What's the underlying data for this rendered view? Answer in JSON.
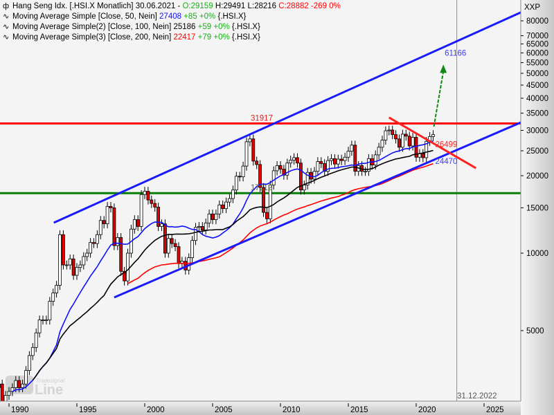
{
  "legend": {
    "main": {
      "name": "Hang Seng Idx. [.HSI.X  Monatlich] 30.06.2021 -",
      "open": "O:29159",
      "high": "H:29491",
      "low": "L:28216",
      "close": "C:28882 -269 0%"
    },
    "ma": [
      {
        "label": "Moving Average Simple [Close, 50, Nein]",
        "value": "27408",
        "change": "+85 +0%",
        "symbol": "{.HSI.X}",
        "color": "#1010ff",
        "period": 50
      },
      {
        "label": "Moving Average Simple(2) [Close, 100, Nein]",
        "value": "25186",
        "change": "+59 +0%",
        "symbol": "{.HSI.X}",
        "color": "#000000",
        "period": 100
      },
      {
        "label": "Moving Average Simple(3) [Close, 200, Nein]",
        "value": "22417",
        "change": "+79 +0%",
        "symbol": "{.HSI.X}",
        "color": "#ff0000",
        "period": 200
      }
    ]
  },
  "axis_unit": "XXP",
  "date_marker": "31.12.2022",
  "logo_text": "Tradesignal Online",
  "chart_data": {
    "type": "candlestick",
    "title": "Hang Seng Idx. [.HSI.X Monatlich]",
    "yscale": "log",
    "ylim": [
      2700,
      90000
    ],
    "xlim": [
      1989.4,
      2027.7
    ],
    "x_ticks": [
      1990,
      1995,
      2000,
      2005,
      2010,
      2015,
      2020,
      2025
    ],
    "y_ticks": [
      5000,
      10000,
      15000,
      20000,
      25000,
      30000,
      35000,
      40000,
      45000,
      50000,
      55000,
      60000,
      65000,
      70000,
      80000
    ],
    "start_year": 1989.0,
    "step_years": 0.25,
    "closes": [
      3000,
      3100,
      2600,
      2800,
      2900,
      3000,
      3200,
      3000,
      3100,
      3500,
      4000,
      4300,
      4900,
      5500,
      5500,
      5500,
      6500,
      7000,
      7500,
      11800,
      9000,
      9000,
      9500,
      8200,
      8800,
      9000,
      9700,
      10000,
      11000,
      10900,
      11800,
      13400,
      13000,
      15200,
      15000,
      10700,
      11500,
      8500,
      7800,
      10000,
      12400,
      13500,
      12700,
      16900,
      17400,
      16100,
      15600,
      15100,
      12700,
      13000,
      10000,
      11400,
      10900,
      10600,
      9100,
      9300,
      8600,
      9600,
      11200,
      12600,
      12700,
      12300,
      13100,
      14200,
      13500,
      14200,
      15400,
      14900,
      15800,
      16300,
      17600,
      19900,
      19800,
      21800,
      27100,
      27800,
      22800,
      22100,
      18000,
      14400,
      13600,
      18400,
      20900,
      21900,
      21200,
      20100,
      22400,
      23000,
      23500,
      22400,
      17600,
      18400,
      20600,
      19400,
      20800,
      22700,
      22300,
      20800,
      22900,
      23300,
      22200,
      23200,
      22900,
      23600,
      24900,
      26300,
      20800,
      21900,
      20800,
      20800,
      23300,
      22000,
      24100,
      25800,
      27500,
      29900,
      30100,
      28900,
      27800,
      25800,
      29000,
      28500,
      26100,
      28200,
      23600,
      24400,
      23500,
      27200,
      28400,
      28882
    ],
    "hlines": [
      {
        "value": 31917,
        "label": "31917",
        "color": "#ff0000"
      },
      {
        "value": 17112,
        "label": "17112",
        "color": "#008000"
      }
    ],
    "trendlines": [
      {
        "name": "upper-channel",
        "from": [
          1993.3,
          13130
        ],
        "to": [
          2027.7,
          86200
        ],
        "color": "#1a1aff"
      },
      {
        "name": "lower-channel",
        "from": [
          1997.75,
          6730
        ],
        "to": [
          2030.1,
          36500
        ],
        "color": "#1a1aff"
      },
      {
        "name": "red-downtrend",
        "from": [
          2018.0,
          33660
        ],
        "to": [
          2024.4,
          21400
        ],
        "color": "#ff2020"
      }
    ],
    "arrow": {
      "from": [
        2021.3,
        31000
      ],
      "to": [
        2022.0,
        53400
      ],
      "color": "#118811"
    },
    "annotations": [
      {
        "text": "61166",
        "at": [
          2022.1,
          60000
        ],
        "color": "#3a3aff"
      },
      {
        "text": "26499",
        "at": [
          2021.4,
          26499
        ],
        "color": "#ff2020"
      },
      {
        "text": "24470",
        "at": [
          2021.4,
          22800
        ],
        "color": "#3a3aff"
      }
    ]
  }
}
